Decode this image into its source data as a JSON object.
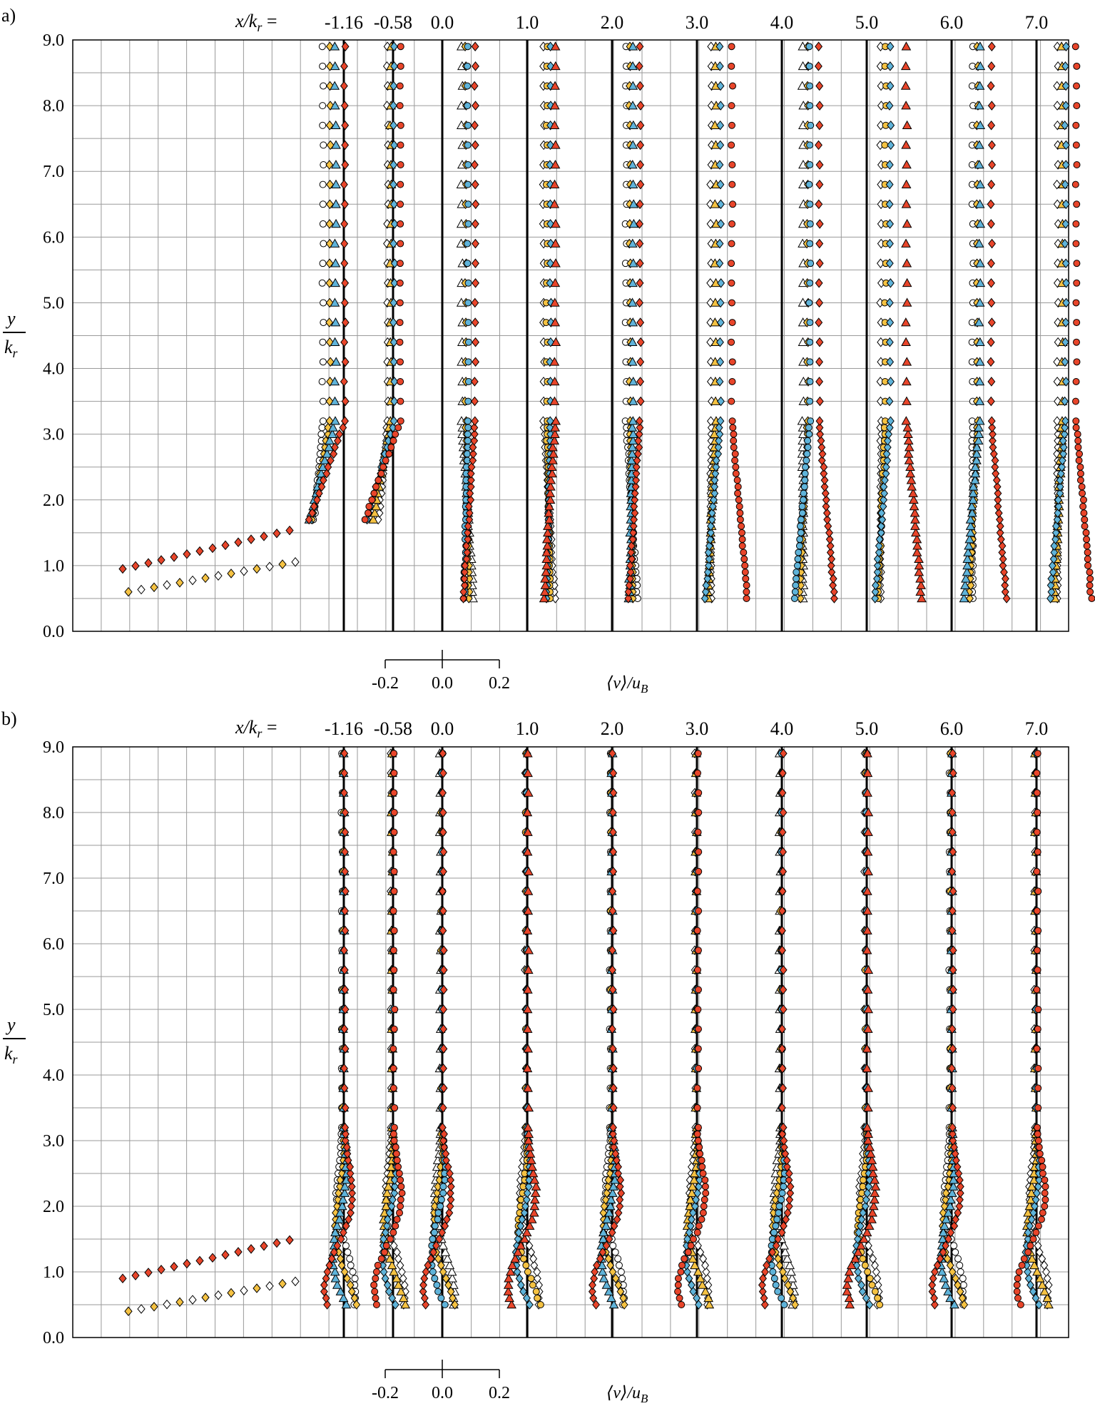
{
  "chart_data": [
    {
      "panel": "a)",
      "type": "scatter",
      "station_prefix": "x/k",
      "station_prefix_sub": "r",
      "station_prefix_eq": " =",
      "stations": [
        "-1.16",
        "-0.58",
        "0.0",
        "1.0",
        "2.0",
        "3.0",
        "4.0",
        "5.0",
        "6.0",
        "7.0"
      ],
      "station_x": [
        -1.16,
        -0.58,
        0.0,
        1.0,
        2.0,
        3.0,
        4.0,
        5.0,
        6.0,
        7.0
      ],
      "ylabel_num": "y",
      "ylabel_den": "k",
      "ylabel_sub": "r",
      "yticks": [
        "0.0",
        "1.0",
        "2.0",
        "3.0",
        "4.0",
        "5.0",
        "6.0",
        "7.0",
        "8.0",
        "9.0"
      ],
      "ylim": [
        0,
        9
      ],
      "scale_ticks": [
        "-0.2",
        "0.0",
        "0.2"
      ],
      "scale_label": "⟨v⟩/u",
      "scale_label_sub": "B",
      "grid": true,
      "series_colors": [
        "#ffffff",
        "#f5c242",
        "#5fb3d9",
        "#e8452a"
      ],
      "profiles": [
        {
          "station": -1.16,
          "base_offsets": [
            -0.45,
            -0.3,
            -0.18,
            0.02
          ],
          "near_wall": "left"
        },
        {
          "station": -0.58,
          "base_offsets": [
            -0.12,
            -0.05,
            0.02,
            0.15
          ],
          "near_wall": "left"
        },
        {
          "station": 0.0,
          "base_offsets": [
            0.42,
            0.5,
            0.55,
            0.7
          ],
          "near_wall": "mixed"
        },
        {
          "station": 1.0,
          "base_offsets": [
            0.35,
            0.42,
            0.5,
            0.6
          ],
          "near_wall": "mixed"
        },
        {
          "station": 2.0,
          "base_offsets": [
            0.3,
            0.38,
            0.45,
            0.6
          ],
          "near_wall": "mixed"
        },
        {
          "station": 3.0,
          "base_offsets": [
            0.3,
            0.4,
            0.5,
            0.75
          ],
          "near_wall": "right"
        },
        {
          "station": 4.0,
          "base_offsets": [
            0.45,
            0.55,
            0.6,
            0.8
          ],
          "near_wall": "right"
        },
        {
          "station": 5.0,
          "base_offsets": [
            0.3,
            0.4,
            0.5,
            0.85
          ],
          "near_wall": "right"
        },
        {
          "station": 6.0,
          "base_offsets": [
            0.45,
            0.55,
            0.6,
            0.85
          ],
          "near_wall": "right"
        },
        {
          "station": 7.0,
          "base_offsets": [
            0.45,
            0.55,
            0.62,
            0.85
          ],
          "near_wall": "right"
        }
      ]
    },
    {
      "panel": "b)",
      "type": "scatter",
      "station_prefix": "x/k",
      "station_prefix_sub": "r",
      "station_prefix_eq": " =",
      "stations": [
        "-1.16",
        "-0.58",
        "0.0",
        "1.0",
        "2.0",
        "3.0",
        "4.0",
        "5.0",
        "6.0",
        "7.0"
      ],
      "station_x": [
        -1.16,
        -0.58,
        0.0,
        1.0,
        2.0,
        3.0,
        4.0,
        5.0,
        6.0,
        7.0
      ],
      "ylabel_num": "y",
      "ylabel_den": "k",
      "ylabel_sub": "r",
      "yticks": [
        "0.0",
        "1.0",
        "2.0",
        "3.0",
        "4.0",
        "5.0",
        "6.0",
        "7.0",
        "8.0",
        "9.0"
      ],
      "ylim": [
        0,
        9
      ],
      "scale_ticks": [
        "-0.2",
        "0.0",
        "0.2"
      ],
      "scale_label": "⟨v⟩/u",
      "scale_label_sub": "B",
      "grid": true,
      "series_colors": [
        "#ffffff",
        "#f5c242",
        "#5fb3d9",
        "#e8452a"
      ],
      "profiles": [
        {
          "station": -1.16,
          "base_offsets": [
            -0.04,
            -0.02,
            0.0,
            0.02
          ],
          "near_wall": "right"
        },
        {
          "station": -0.58,
          "base_offsets": [
            -0.04,
            -0.02,
            0.0,
            0.02
          ],
          "near_wall": "right"
        },
        {
          "station": 0.0,
          "base_offsets": [
            -0.04,
            -0.02,
            0.0,
            0.02
          ],
          "near_wall": "right"
        },
        {
          "station": 1.0,
          "base_offsets": [
            -0.04,
            -0.02,
            0.0,
            0.02
          ],
          "near_wall": "right"
        },
        {
          "station": 2.0,
          "base_offsets": [
            -0.04,
            -0.02,
            0.0,
            0.02
          ],
          "near_wall": "right"
        },
        {
          "station": 3.0,
          "base_offsets": [
            -0.04,
            -0.02,
            0.0,
            0.02
          ],
          "near_wall": "right"
        },
        {
          "station": 4.0,
          "base_offsets": [
            -0.04,
            -0.02,
            0.0,
            0.02
          ],
          "near_wall": "right"
        },
        {
          "station": 5.0,
          "base_offsets": [
            -0.04,
            -0.02,
            0.0,
            0.02
          ],
          "near_wall": "right"
        },
        {
          "station": 6.0,
          "base_offsets": [
            -0.04,
            -0.02,
            0.0,
            0.02
          ],
          "near_wall": "right"
        },
        {
          "station": 7.0,
          "base_offsets": [
            -0.04,
            -0.02,
            0.0,
            0.02
          ],
          "near_wall": "right"
        }
      ]
    }
  ]
}
